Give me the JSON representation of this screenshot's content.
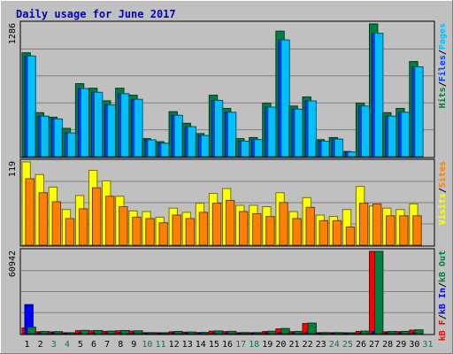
{
  "chart_data": {
    "type": "bar",
    "title": "Daily usage for June 2017",
    "colors": {
      "background": "#c0c0c0",
      "hits": "#00c0ff",
      "files": "#0040ff",
      "pages": "#00c0ff",
      "visits": "#ffff00",
      "sites": "#ff8000",
      "kb_f": "#ff0000",
      "kb_in": "#0000ff",
      "kb_out": "#008040",
      "title": "#0000c0",
      "weekend_label": "#008040",
      "weekday_label": "#000000"
    },
    "days": [
      "1",
      "2",
      "3",
      "4",
      "5",
      "6",
      "7",
      "8",
      "9",
      "10",
      "11",
      "12",
      "13",
      "14",
      "15",
      "16",
      "17",
      "18",
      "19",
      "20",
      "21",
      "22",
      "23",
      "24",
      "25",
      "26",
      "27",
      "28",
      "29",
      "30",
      "31"
    ],
    "weekend_days": [
      "3",
      "4",
      "10",
      "11",
      "17",
      "18",
      "24",
      "25",
      "31"
    ],
    "panels": [
      {
        "id": "hits",
        "max_label": "1286",
        "ymax": 1286,
        "legend": [
          {
            "text": "Hits",
            "color": "#008040"
          },
          {
            "text": "/",
            "color": "#000000"
          },
          {
            "text": "Files",
            "color": "#0040ff"
          },
          {
            "text": "/",
            "color": "#000000"
          },
          {
            "text": "Pages",
            "color": "#00c0ff"
          }
        ],
        "series": [
          {
            "name": "Hits",
            "color": "#008040",
            "values": [
              1006,
              426,
              382,
              274,
              707,
              663,
              541,
              663,
              595,
              175,
              145,
              436,
              323,
              224,
              595,
              467,
              175,
              185,
              518,
              1216,
              490,
              578,
              165,
              185,
              50,
              518,
              1286,
              426,
              467,
              921,
              null
            ]
          },
          {
            "name": "Files",
            "color": "#0040ff",
            "values": [
              975,
              392,
              365,
              230,
              660,
              623,
              500,
              610,
              555,
              163,
              130,
              400,
              290,
              205,
              545,
              430,
              150,
              165,
              480,
              1130,
              460,
              540,
              150,
              170,
              45,
              490,
              1195,
              392,
              430,
              870,
              null
            ]
          },
          {
            "name": "Pages",
            "color": "#00c0ff",
            "values": [
              975,
              392,
              365,
              230,
              660,
              623,
              500,
              610,
              555,
              163,
              130,
              400,
              290,
              205,
              545,
              430,
              150,
              165,
              480,
              1130,
              460,
              540,
              150,
              170,
              45,
              490,
              1195,
              392,
              430,
              870,
              null
            ]
          }
        ]
      },
      {
        "id": "visits",
        "max_label": "119",
        "ymax": 119,
        "legend": [
          {
            "text": "Visits",
            "color": "#ffff00"
          },
          {
            "text": "/",
            "color": "#000000"
          },
          {
            "text": "Sites",
            "color": "#ff8000"
          }
        ],
        "series": [
          {
            "name": "Visits",
            "color": "#ffff00",
            "values": [
              119,
              101,
              83,
              51,
              71,
              107,
              92,
              70,
              49,
              48,
              40,
              53,
              47,
              60,
              74,
              81,
              57,
              57,
              55,
              75,
              48,
              68,
              43,
              41,
              51,
              84,
              56,
              53,
              51,
              59,
              null
            ]
          },
          {
            "name": "Sites",
            "color": "#ff8000",
            "values": [
              95,
              75,
              62,
              38,
              52,
              82,
              70,
              55,
              40,
              38,
              32,
              43,
              38,
              47,
              60,
              64,
              48,
              45,
              41,
              61,
              38,
              54,
              35,
              35,
              26,
              60,
              59,
              42,
              42,
              42,
              null
            ]
          }
        ]
      },
      {
        "id": "kbytes",
        "max_label": "60942",
        "ymax": 60942,
        "legend": [
          {
            "text": "kB F",
            "color": "#ff0000"
          },
          {
            "text": "/",
            "color": "#000000"
          },
          {
            "text": "kB In",
            "color": "#0000ff"
          },
          {
            "text": "/",
            "color": "#000000"
          },
          {
            "text": "kB Out",
            "color": "#008040"
          }
        ],
        "series": [
          {
            "name": "kB F",
            "color": "#ff0000",
            "values": [
              4200,
              1400,
              1300,
              600,
              2200,
              2100,
              1700,
              2100,
              1900,
              700,
              600,
              1400,
              1100,
              800,
              1800,
              1500,
              700,
              700,
              1600,
              3500,
              1500,
              7500,
              700,
              700,
              300,
              1700,
              60942,
              1400,
              1500,
              2600,
              null
            ]
          },
          {
            "name": "kB In",
            "color": "#0000ff",
            "values": [
              21500,
              400,
              400,
              300,
              600,
              600,
              500,
              600,
              500,
              300,
              300,
              400,
              400,
              300,
              500,
              500,
              300,
              300,
              400,
              900,
              400,
              700,
              300,
              300,
              200,
              500,
              1500,
              400,
              400,
              700,
              null
            ]
          },
          {
            "name": "kB Out",
            "color": "#008040",
            "values": [
              4800,
              1600,
              1500,
              700,
              2400,
              2300,
              1900,
              2300,
              2100,
              800,
              700,
              1600,
              1200,
              900,
              2000,
              1700,
              800,
              800,
              1800,
              3800,
              1700,
              7800,
              800,
              800,
              400,
              1900,
              60942,
              1600,
              1700,
              2800,
              null
            ]
          }
        ]
      }
    ]
  }
}
